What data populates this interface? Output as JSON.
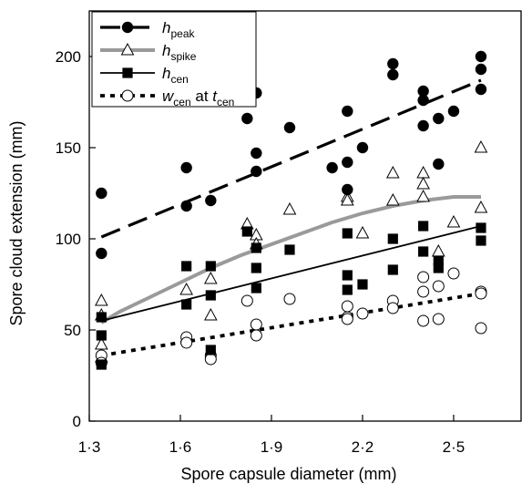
{
  "chart_data": {
    "type": "scatter",
    "xlabel": "Spore capsule diameter (mm)",
    "ylabel": "Spore cloud extension (mm)",
    "xlim": [
      1.3,
      2.6
    ],
    "ylim": [
      0,
      225
    ],
    "xticks": [
      1.3,
      1.6,
      1.9,
      2.2,
      2.5
    ],
    "xtick_labels": [
      "1·3",
      "1·6",
      "1·9",
      "2·2",
      "2·5"
    ],
    "yticks": [
      0,
      50,
      100,
      150,
      200
    ],
    "ytick_labels": [
      "0",
      "50",
      "100",
      "150",
      "200"
    ],
    "grid": false,
    "legend_position": "top-left",
    "series": [
      {
        "key": "h_peak",
        "name_main": "h",
        "name_sub": "peak",
        "marker": "filled-circle",
        "color": "#000000",
        "points": [
          [
            1.34,
            125
          ],
          [
            1.34,
            92
          ],
          [
            1.62,
            139
          ],
          [
            1.62,
            118
          ],
          [
            1.7,
            121
          ],
          [
            1.82,
            166
          ],
          [
            1.85,
            180
          ],
          [
            1.85,
            147
          ],
          [
            1.85,
            137
          ],
          [
            1.96,
            161
          ],
          [
            2.1,
            139
          ],
          [
            2.15,
            170
          ],
          [
            2.15,
            142
          ],
          [
            2.15,
            127
          ],
          [
            2.2,
            150
          ],
          [
            2.3,
            196
          ],
          [
            2.3,
            190
          ],
          [
            2.4,
            181
          ],
          [
            2.4,
            176
          ],
          [
            2.4,
            162
          ],
          [
            2.45,
            166
          ],
          [
            2.45,
            141
          ],
          [
            2.5,
            170
          ],
          [
            2.59,
            200
          ],
          [
            2.59,
            193
          ],
          [
            2.59,
            182
          ]
        ],
        "fit": {
          "style": "long-dash",
          "from": [
            1.34,
            101
          ],
          "to": [
            2.59,
            187
          ]
        }
      },
      {
        "key": "h_spike",
        "name_main": "h",
        "name_sub": "spike",
        "marker": "open-triangle",
        "color": "#000000",
        "points": [
          [
            1.34,
            66
          ],
          [
            1.34,
            58
          ],
          [
            1.34,
            42
          ],
          [
            1.34,
            35
          ],
          [
            1.62,
            72
          ],
          [
            1.7,
            78
          ],
          [
            1.7,
            58
          ],
          [
            1.82,
            108
          ],
          [
            1.85,
            102
          ],
          [
            1.85,
            97
          ],
          [
            1.96,
            116
          ],
          [
            2.15,
            123
          ],
          [
            2.15,
            121
          ],
          [
            2.2,
            103
          ],
          [
            2.3,
            136
          ],
          [
            2.3,
            121
          ],
          [
            2.4,
            136
          ],
          [
            2.4,
            130
          ],
          [
            2.4,
            123
          ],
          [
            2.45,
            93
          ],
          [
            2.5,
            109
          ],
          [
            2.59,
            150
          ],
          [
            2.59,
            117
          ]
        ],
        "fit": {
          "style": "thick-grey",
          "points": [
            [
              1.34,
              54
            ],
            [
              1.4,
              60
            ],
            [
              1.5,
              68
            ],
            [
              1.6,
              76
            ],
            [
              1.7,
              84
            ],
            [
              1.8,
              91
            ],
            [
              1.9,
              97
            ],
            [
              2.0,
              103
            ],
            [
              2.1,
              109
            ],
            [
              2.2,
              114
            ],
            [
              2.3,
              118
            ],
            [
              2.4,
              121
            ],
            [
              2.5,
              123
            ],
            [
              2.59,
              123
            ]
          ]
        }
      },
      {
        "key": "h_cen",
        "name_main": "h",
        "name_sub": "cen",
        "marker": "filled-square",
        "color": "#000000",
        "points": [
          [
            1.34,
            57
          ],
          [
            1.34,
            47
          ],
          [
            1.34,
            31
          ],
          [
            1.62,
            85
          ],
          [
            1.62,
            64
          ],
          [
            1.7,
            85
          ],
          [
            1.7,
            69
          ],
          [
            1.7,
            39
          ],
          [
            1.82,
            104
          ],
          [
            1.85,
            95
          ],
          [
            1.85,
            84
          ],
          [
            1.85,
            73
          ],
          [
            1.96,
            94
          ],
          [
            2.15,
            103
          ],
          [
            2.15,
            80
          ],
          [
            2.15,
            72
          ],
          [
            2.2,
            75
          ],
          [
            2.3,
            100
          ],
          [
            2.3,
            83
          ],
          [
            2.4,
            107
          ],
          [
            2.4,
            93
          ],
          [
            2.45,
            88
          ],
          [
            2.45,
            84
          ],
          [
            2.59,
            106
          ],
          [
            2.59,
            99
          ]
        ],
        "fit": {
          "style": "solid-thin",
          "from": [
            1.34,
            55
          ],
          "to": [
            2.59,
            107
          ]
        }
      },
      {
        "key": "w_cen",
        "name_main": "w",
        "name_sub": "cen",
        "name_mid": " at ",
        "name_main2": "t",
        "name_sub2": "cen",
        "marker": "open-circle",
        "color": "#000000",
        "points": [
          [
            1.34,
            36
          ],
          [
            1.34,
            32
          ],
          [
            1.62,
            46
          ],
          [
            1.62,
            43
          ],
          [
            1.7,
            36
          ],
          [
            1.7,
            34
          ],
          [
            1.82,
            66
          ],
          [
            1.85,
            53
          ],
          [
            1.85,
            47
          ],
          [
            1.96,
            67
          ],
          [
            2.15,
            63
          ],
          [
            2.15,
            57
          ],
          [
            2.15,
            56
          ],
          [
            2.2,
            59
          ],
          [
            2.3,
            66
          ],
          [
            2.3,
            62
          ],
          [
            2.4,
            79
          ],
          [
            2.4,
            71
          ],
          [
            2.4,
            55
          ],
          [
            2.45,
            74
          ],
          [
            2.45,
            56
          ],
          [
            2.5,
            81
          ],
          [
            2.59,
            71
          ],
          [
            2.59,
            70
          ],
          [
            2.59,
            51
          ]
        ],
        "fit": {
          "style": "dotted",
          "from": [
            1.34,
            36
          ],
          "to": [
            2.59,
            70
          ]
        }
      }
    ]
  }
}
